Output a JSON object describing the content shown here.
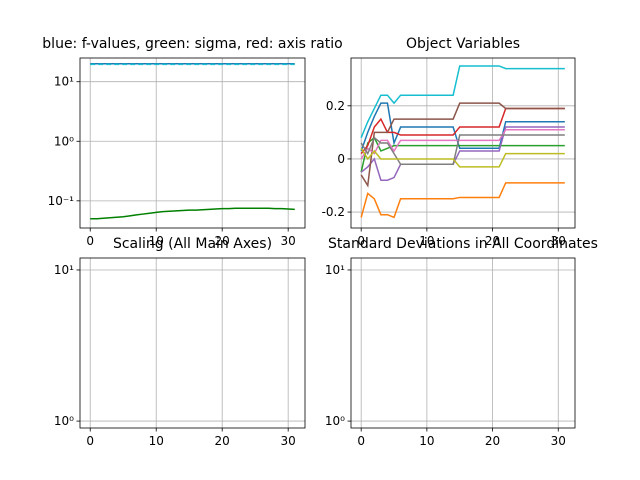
{
  "chart_data": [
    {
      "type": "line",
      "title": "blue: f-values, green: sigma, red: axis ratio",
      "log": true,
      "grid": true,
      "x": [
        0,
        1,
        2,
        3,
        4,
        5,
        6,
        7,
        8,
        9,
        10,
        11,
        12,
        13,
        14,
        15,
        16,
        17,
        18,
        19,
        20,
        21,
        22,
        23,
        24,
        25,
        26,
        27,
        28,
        29,
        30,
        31
      ],
      "xlim": [
        -1.55,
        32.55
      ],
      "xticks": [
        0,
        10,
        20,
        30
      ],
      "ylim": [
        0.035,
        25
      ],
      "yticks": [
        {
          "value": 0.1,
          "label": "10⁻¹"
        },
        {
          "value": 1,
          "label": "10⁰"
        },
        {
          "value": 10,
          "label": "10¹"
        }
      ],
      "series": [
        {
          "color": "#1f77b4",
          "values": [
            20,
            20,
            20,
            20,
            20,
            20,
            20,
            20,
            20,
            20,
            20,
            20,
            20,
            20,
            20,
            20,
            20,
            20,
            20,
            20,
            20,
            20,
            20,
            20,
            20,
            20,
            20,
            20,
            20,
            20,
            20,
            20
          ]
        },
        {
          "color": "#17becf",
          "dashed": true,
          "values": [
            19.5,
            19.5,
            19.5,
            19.5,
            19.5,
            19.5,
            19.5,
            19.5,
            19.5,
            19.5,
            19.5,
            19.5,
            19.5,
            19.5,
            19.5,
            19.5,
            19.5,
            19.5,
            19.5,
            19.5,
            19.5,
            19.5,
            19.5,
            19.5,
            19.5,
            19.5,
            19.5,
            19.5,
            19.5,
            19.5,
            19.5,
            19.5
          ]
        },
        {
          "color": "#008000",
          "values": [
            0.05,
            0.05,
            0.051,
            0.052,
            0.053,
            0.054,
            0.056,
            0.058,
            0.06,
            0.062,
            0.064,
            0.066,
            0.067,
            0.068,
            0.069,
            0.07,
            0.07,
            0.071,
            0.072,
            0.073,
            0.074,
            0.074,
            0.075,
            0.075,
            0.075,
            0.075,
            0.075,
            0.075,
            0.074,
            0.074,
            0.073,
            0.072
          ]
        }
      ]
    },
    {
      "type": "line",
      "title": "Object Variables",
      "log": false,
      "grid": true,
      "x": [
        0,
        1,
        2,
        3,
        4,
        5,
        6,
        7,
        8,
        9,
        10,
        11,
        12,
        13,
        14,
        15,
        16,
        17,
        18,
        19,
        20,
        21,
        22,
        23,
        24,
        25,
        26,
        27,
        28,
        29,
        30,
        31
      ],
      "xlim": [
        -1.55,
        32.55
      ],
      "xticks": [
        0,
        10,
        20,
        30
      ],
      "ylim": [
        -0.26,
        0.38
      ],
      "yticks": [
        -0.2,
        0.0,
        0.2
      ],
      "series": [
        {
          "color": "#1f77b4",
          "values": [
            0.03,
            0.1,
            0.16,
            0.21,
            0.21,
            0.06,
            0.12,
            0.12,
            0.12,
            0.12,
            0.12,
            0.12,
            0.12,
            0.12,
            0.12,
            0.04,
            0.04,
            0.04,
            0.04,
            0.04,
            0.04,
            0.04,
            0.14,
            0.14,
            0.14,
            0.14,
            0.14,
            0.14,
            0.14,
            0.14,
            0.14,
            0.14
          ]
        },
        {
          "color": "#ff7f0e",
          "values": [
            -0.22,
            -0.13,
            -0.15,
            -0.21,
            -0.21,
            -0.22,
            -0.15,
            -0.15,
            -0.15,
            -0.15,
            -0.15,
            -0.15,
            -0.15,
            -0.15,
            -0.15,
            -0.145,
            -0.145,
            -0.145,
            -0.145,
            -0.145,
            -0.145,
            -0.145,
            -0.09,
            -0.09,
            -0.09,
            -0.09,
            -0.09,
            -0.09,
            -0.09,
            -0.09,
            -0.09,
            -0.09
          ]
        },
        {
          "color": "#2ca02c",
          "values": [
            -0.05,
            0.06,
            0.08,
            0.03,
            0.04,
            0.05,
            0.05,
            0.05,
            0.05,
            0.05,
            0.05,
            0.05,
            0.05,
            0.05,
            0.05,
            0.05,
            0.05,
            0.05,
            0.05,
            0.05,
            0.05,
            0.05,
            0.05,
            0.05,
            0.05,
            0.05,
            0.05,
            0.05,
            0.05,
            0.05,
            0.05,
            0.05
          ]
        },
        {
          "color": "#d62728",
          "values": [
            0.02,
            0.05,
            0.12,
            0.15,
            0.1,
            0.1,
            0.09,
            0.09,
            0.09,
            0.09,
            0.09,
            0.09,
            0.09,
            0.09,
            0.09,
            0.12,
            0.12,
            0.12,
            0.12,
            0.12,
            0.12,
            0.12,
            0.19,
            0.19,
            0.19,
            0.19,
            0.19,
            0.19,
            0.19,
            0.19,
            0.19,
            0.19
          ]
        },
        {
          "color": "#9467bd",
          "values": [
            -0.05,
            -0.03,
            0.0,
            -0.08,
            -0.08,
            -0.07,
            -0.02,
            -0.02,
            -0.02,
            -0.02,
            -0.02,
            -0.02,
            -0.02,
            -0.02,
            -0.02,
            0.03,
            0.03,
            0.03,
            0.03,
            0.03,
            0.03,
            0.03,
            0.12,
            0.12,
            0.12,
            0.12,
            0.12,
            0.12,
            0.12,
            0.12,
            0.12,
            0.12
          ]
        },
        {
          "color": "#8c564b",
          "values": [
            -0.06,
            -0.1,
            0.1,
            0.1,
            0.1,
            0.15,
            0.15,
            0.15,
            0.15,
            0.15,
            0.15,
            0.15,
            0.15,
            0.15,
            0.15,
            0.21,
            0.21,
            0.21,
            0.21,
            0.21,
            0.21,
            0.21,
            0.19,
            0.19,
            0.19,
            0.19,
            0.19,
            0.19,
            0.19,
            0.19,
            0.19,
            0.19
          ]
        },
        {
          "color": "#e377c2",
          "values": [
            0.0,
            0.04,
            0.02,
            0.07,
            0.07,
            0.03,
            0.07,
            0.07,
            0.07,
            0.07,
            0.07,
            0.07,
            0.07,
            0.07,
            0.07,
            0.07,
            0.07,
            0.07,
            0.07,
            0.07,
            0.07,
            0.07,
            0.11,
            0.11,
            0.11,
            0.11,
            0.11,
            0.11,
            0.11,
            0.11,
            0.11,
            0.11
          ]
        },
        {
          "color": "#7f7f7f",
          "values": [
            0.06,
            0.02,
            0.08,
            0.06,
            0.06,
            0.02,
            -0.02,
            -0.02,
            -0.02,
            -0.02,
            -0.02,
            -0.02,
            -0.02,
            -0.02,
            -0.02,
            0.09,
            0.09,
            0.09,
            0.09,
            0.09,
            0.09,
            0.09,
            0.09,
            0.09,
            0.09,
            0.09,
            0.09,
            0.09,
            0.09,
            0.09,
            0.09,
            0.09
          ]
        },
        {
          "color": "#bcbd22",
          "values": [
            0.04,
            0.0,
            0.03,
            0.0,
            0.0,
            0.0,
            0.0,
            0.0,
            0.0,
            0.0,
            0.0,
            0.0,
            0.0,
            0.0,
            0.0,
            -0.03,
            -0.03,
            -0.03,
            -0.03,
            -0.03,
            -0.03,
            -0.03,
            0.02,
            0.02,
            0.02,
            0.02,
            0.02,
            0.02,
            0.02,
            0.02,
            0.02,
            0.02
          ]
        },
        {
          "color": "#17becf",
          "values": [
            0.08,
            0.14,
            0.19,
            0.24,
            0.24,
            0.21,
            0.24,
            0.24,
            0.24,
            0.24,
            0.24,
            0.24,
            0.24,
            0.24,
            0.24,
            0.35,
            0.35,
            0.35,
            0.35,
            0.35,
            0.35,
            0.35,
            0.34,
            0.34,
            0.34,
            0.34,
            0.34,
            0.34,
            0.34,
            0.34,
            0.34,
            0.34
          ]
        }
      ]
    },
    {
      "type": "line",
      "title": "Scaling (All Main Axes)",
      "log": true,
      "grid": true,
      "xlim": [
        -1.55,
        32.55
      ],
      "xticks": [
        0,
        10,
        20,
        30
      ],
      "ylim": [
        0.9,
        12
      ],
      "yticks": [
        {
          "value": 1,
          "label": "10⁰"
        },
        {
          "value": 10,
          "label": "10¹"
        }
      ],
      "series": []
    },
    {
      "type": "line",
      "title": "Standard Deviations in All Coordinates",
      "log": true,
      "grid": true,
      "xlim": [
        -1.55,
        32.55
      ],
      "xticks": [
        0,
        10,
        20,
        30
      ],
      "ylim": [
        0.9,
        12
      ],
      "yticks": [
        {
          "value": 1,
          "label": "10⁰"
        },
        {
          "value": 10,
          "label": "10¹"
        }
      ],
      "series": []
    }
  ]
}
